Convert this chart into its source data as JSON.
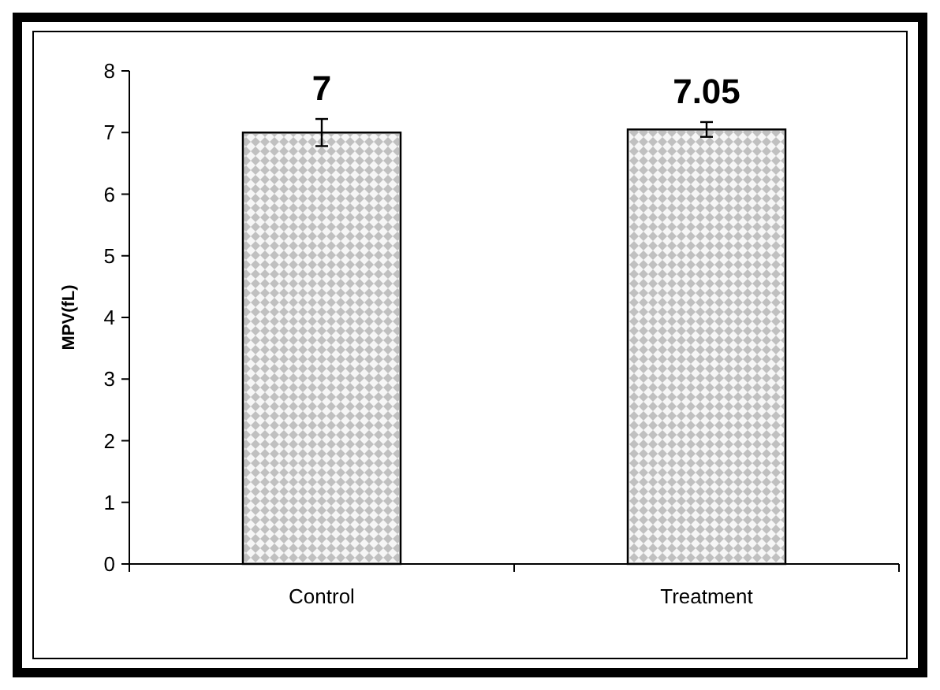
{
  "chart_data": {
    "type": "bar",
    "ylabel": "MPV(fL)",
    "categories": [
      "Control",
      "Treatment"
    ],
    "values": [
      7,
      7.05
    ],
    "errors": [
      0.22,
      0.12
    ],
    "color": "#c0c0c0",
    "data_labels": true,
    "ylim": [
      0,
      8
    ],
    "yticks": [
      0,
      1,
      2,
      3,
      4,
      5,
      6,
      7,
      8
    ],
    "grid": false
  }
}
